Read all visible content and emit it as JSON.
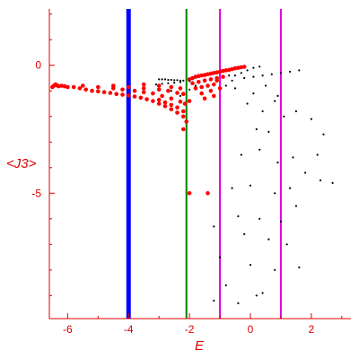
{
  "chart_data": {
    "type": "scatter",
    "xlabel": "E",
    "ylabel": "<J3>",
    "xlim": [
      -6.6,
      3.3
    ],
    "ylim": [
      -9.9,
      2.2
    ],
    "x_ticks": [
      -6,
      -4,
      -2,
      0,
      2
    ],
    "y_ticks": [
      0,
      -5
    ],
    "grid": false,
    "axis_color": "#dd0000",
    "vertical_lines": [
      {
        "x": -4.0,
        "color": "#0000ff"
      },
      {
        "x": -2.1,
        "color": "#008000"
      },
      {
        "x": -1.0,
        "color": "#e000e0"
      },
      {
        "x": 1.0,
        "color": "#e000e0"
      }
    ],
    "series": [
      {
        "color": "#ff0000",
        "points": [
          [
            -6.5,
            -0.85
          ],
          [
            -6.45,
            -0.8
          ],
          [
            -6.4,
            -0.75
          ],
          [
            -6.35,
            -0.78
          ],
          [
            -6.3,
            -0.82
          ],
          [
            -6.2,
            -0.8
          ],
          [
            -6.1,
            -0.82
          ],
          [
            -6.0,
            -0.85
          ],
          [
            -5.8,
            -0.85
          ],
          [
            -5.6,
            -0.9
          ],
          [
            -5.4,
            -0.95
          ],
          [
            -5.2,
            -1.0
          ],
          [
            -5.0,
            -1.02
          ],
          [
            -4.8,
            -1.05
          ],
          [
            -4.6,
            -1.08
          ],
          [
            -4.4,
            -1.12
          ],
          [
            -4.2,
            -1.15
          ],
          [
            -4.0,
            -1.18
          ],
          [
            -3.8,
            -1.22
          ],
          [
            -3.6,
            -1.27
          ],
          [
            -3.4,
            -1.33
          ],
          [
            -3.2,
            -1.4
          ],
          [
            -3.0,
            -1.5
          ],
          [
            -2.8,
            -1.6
          ],
          [
            -2.6,
            -1.72
          ],
          [
            -2.4,
            -1.85
          ],
          [
            -2.2,
            -2.0
          ],
          [
            -5.5,
            -0.8
          ],
          [
            -5.0,
            -0.85
          ],
          [
            -4.5,
            -0.9
          ],
          [
            -4.2,
            -0.95
          ],
          [
            -3.8,
            -1.0
          ],
          [
            -3.5,
            -1.05
          ],
          [
            -3.2,
            -1.1
          ],
          [
            -2.9,
            -1.2
          ],
          [
            -2.6,
            -1.3
          ],
          [
            -2.3,
            -1.42
          ],
          [
            -2.15,
            -1.5
          ],
          [
            -4.5,
            -0.8
          ],
          [
            -4.0,
            -0.85
          ],
          [
            -3.5,
            -0.9
          ],
          [
            -3.0,
            -0.95
          ],
          [
            -2.7,
            -1.0
          ],
          [
            -2.4,
            -1.08
          ],
          [
            -2.2,
            -1.12
          ],
          [
            -3.5,
            -0.75
          ],
          [
            -3.0,
            -0.8
          ],
          [
            -2.6,
            -0.85
          ],
          [
            -2.3,
            -0.9
          ],
          [
            -3.0,
            -1.35
          ],
          [
            -2.8,
            -1.45
          ],
          [
            -2.6,
            -1.55
          ],
          [
            -2.4,
            -1.65
          ],
          [
            -2.2,
            -1.8
          ],
          [
            -2.2,
            -2.5
          ],
          [
            -2.1,
            -2.2
          ],
          [
            -2.0,
            -1.4
          ],
          [
            -2.0,
            -5.0
          ],
          [
            -1.4,
            -5.0
          ],
          [
            -2.0,
            -0.55
          ],
          [
            -1.9,
            -0.5
          ],
          [
            -1.8,
            -0.45
          ],
          [
            -1.7,
            -0.42
          ],
          [
            -1.6,
            -0.4
          ],
          [
            -1.5,
            -0.38
          ],
          [
            -1.4,
            -0.35
          ],
          [
            -1.3,
            -0.33
          ],
          [
            -1.2,
            -0.3
          ],
          [
            -1.1,
            -0.28
          ],
          [
            -1.0,
            -0.25
          ],
          [
            -0.9,
            -0.22
          ],
          [
            -0.8,
            -0.2
          ],
          [
            -0.7,
            -0.18
          ],
          [
            -0.6,
            -0.15
          ],
          [
            -0.5,
            -0.12
          ],
          [
            -0.4,
            -0.1
          ],
          [
            -0.3,
            -0.08
          ],
          [
            -0.2,
            -0.06
          ],
          [
            -1.9,
            -0.7
          ],
          [
            -1.7,
            -0.65
          ],
          [
            -1.5,
            -0.6
          ],
          [
            -1.3,
            -0.55
          ],
          [
            -1.1,
            -0.5
          ],
          [
            -0.9,
            -0.45
          ],
          [
            -1.8,
            -0.9
          ],
          [
            -1.6,
            -0.85
          ],
          [
            -1.4,
            -0.8
          ],
          [
            -1.2,
            -0.75
          ],
          [
            -1.6,
            -1.1
          ],
          [
            -1.3,
            -1.0
          ],
          [
            -1.0,
            -0.9
          ],
          [
            -1.5,
            -1.3
          ],
          [
            -1.2,
            -1.2
          ],
          [
            -1.1,
            -0.6
          ]
        ]
      },
      {
        "color": "#000000",
        "points": [
          [
            -3.0,
            -0.55
          ],
          [
            -2.9,
            -0.55
          ],
          [
            -2.8,
            -0.55
          ],
          [
            -2.7,
            -0.57
          ],
          [
            -2.6,
            -0.57
          ],
          [
            -2.5,
            -0.58
          ],
          [
            -2.4,
            -0.58
          ],
          [
            -2.3,
            -0.6
          ],
          [
            -2.2,
            -0.6
          ],
          [
            -2.0,
            -0.62
          ],
          [
            -3.1,
            -0.75
          ],
          [
            -2.9,
            -0.72
          ],
          [
            -2.7,
            -0.7
          ],
          [
            -2.5,
            -0.68
          ],
          [
            -2.3,
            -0.66
          ],
          [
            -2.6,
            -1.0
          ],
          [
            -2.3,
            -1.2
          ],
          [
            -2.0,
            -0.95
          ],
          [
            -1.8,
            -0.8
          ],
          [
            -0.7,
            -0.4
          ],
          [
            -0.5,
            -0.4
          ],
          [
            -0.3,
            -0.3
          ],
          [
            -0.1,
            -0.2
          ],
          [
            0.1,
            -0.1
          ],
          [
            0.3,
            -0.05
          ],
          [
            -0.2,
            -0.5
          ],
          [
            0.1,
            -0.45
          ],
          [
            0.4,
            -0.4
          ],
          [
            0.7,
            -0.35
          ],
          [
            1.0,
            -0.3
          ],
          [
            1.3,
            -0.25
          ],
          [
            1.6,
            -0.2
          ],
          [
            -0.5,
            -0.9
          ],
          [
            0.1,
            -1.1
          ],
          [
            0.5,
            -0.8
          ],
          [
            0.9,
            -1.2
          ],
          [
            -0.1,
            -1.5
          ],
          [
            0.4,
            -1.8
          ],
          [
            0.8,
            -1.4
          ],
          [
            0.2,
            -2.5
          ],
          [
            0.6,
            -2.6
          ],
          [
            1.1,
            -2.0
          ],
          [
            1.5,
            -1.8
          ],
          [
            -0.3,
            -3.5
          ],
          [
            0.3,
            -3.3
          ],
          [
            0.9,
            -3.8
          ],
          [
            1.4,
            -3.6
          ],
          [
            2.0,
            -2.1
          ],
          [
            2.4,
            -2.7
          ],
          [
            2.2,
            -3.5
          ],
          [
            1.8,
            -4.2
          ],
          [
            2.3,
            -4.5
          ],
          [
            2.7,
            -4.6
          ],
          [
            -0.6,
            -4.8
          ],
          [
            0.0,
            -4.7
          ],
          [
            0.8,
            -5.0
          ],
          [
            1.3,
            -4.8
          ],
          [
            -0.4,
            -5.9
          ],
          [
            0.3,
            -6.0
          ],
          [
            1.0,
            -6.1
          ],
          [
            1.5,
            -5.5
          ],
          [
            -1.2,
            -6.3
          ],
          [
            -0.2,
            -6.6
          ],
          [
            0.6,
            -6.8
          ],
          [
            1.2,
            -7.0
          ],
          [
            -1.0,
            -7.5
          ],
          [
            0.0,
            -7.8
          ],
          [
            0.8,
            -8.0
          ],
          [
            1.6,
            -7.9
          ],
          [
            -0.8,
            -8.6
          ],
          [
            0.4,
            -8.9
          ],
          [
            -1.2,
            -9.2
          ],
          [
            -0.4,
            -9.3
          ],
          [
            0.2,
            -9.0
          ],
          [
            -0.8,
            -0.8
          ],
          [
            -0.6,
            -0.6
          ]
        ]
      }
    ]
  }
}
